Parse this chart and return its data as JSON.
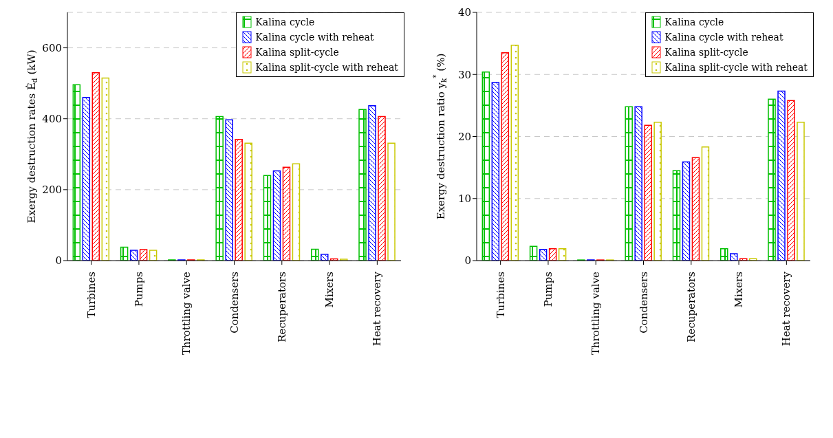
{
  "chart_data": [
    {
      "type": "bar",
      "ylabel": "Exergy destruction rates Ė$_{d}$ (kW)",
      "categories": [
        "Turbines",
        "Pumps",
        "Throttling valve",
        "Condensers",
        "Recuperators",
        "Mixers",
        "Heat recovery"
      ],
      "series": [
        {
          "name": "Kalina cycle",
          "color": "#00c000",
          "values": [
            496,
            38,
            2,
            406,
            240,
            32,
            426
          ]
        },
        {
          "name": "Kalina cycle with reheat",
          "color": "#0000ff",
          "values": [
            460,
            29,
            2,
            397,
            253,
            18,
            437
          ]
        },
        {
          "name": "Kalina split-cycle",
          "color": "#ff0000",
          "values": [
            530,
            31,
            2,
            342,
            263,
            5,
            406
          ]
        },
        {
          "name": "Kalina split-cycle with reheat",
          "color": "#c8c800",
          "values": [
            515,
            29,
            2,
            331,
            273,
            4,
            331
          ]
        }
      ],
      "ylim": [
        0,
        700
      ],
      "yticks": [
        0,
        200,
        400,
        600
      ],
      "grid": "y",
      "legend": "top right"
    },
    {
      "type": "bar",
      "ylabel": "Exergy destruction ratio y$_{k}$$^{*}$ (%)",
      "categories": [
        "Turbines",
        "Pumps",
        "Throttling valve",
        "Condensers",
        "Recuperators",
        "Mixers",
        "Heat recovery"
      ],
      "series": [
        {
          "name": "Kalina cycle",
          "color": "#00c000",
          "values": [
            30.4,
            2.3,
            0.1,
            24.8,
            14.5,
            1.9,
            26.0
          ]
        },
        {
          "name": "Kalina cycle with reheat",
          "color": "#0000ff",
          "values": [
            28.7,
            1.8,
            0.1,
            24.8,
            15.9,
            1.1,
            27.3
          ]
        },
        {
          "name": "Kalina split-cycle",
          "color": "#ff0000",
          "values": [
            33.5,
            1.9,
            0.1,
            21.8,
            16.6,
            0.3,
            25.8
          ]
        },
        {
          "name": "Kalina split-cycle with reheat",
          "color": "#c8c800",
          "values": [
            34.7,
            1.9,
            0.1,
            22.3,
            18.3,
            0.3,
            22.3
          ]
        }
      ],
      "ylim": [
        0,
        40
      ],
      "yticks": [
        0,
        10,
        20,
        30,
        40
      ],
      "grid": "y",
      "legend": "top right"
    }
  ]
}
